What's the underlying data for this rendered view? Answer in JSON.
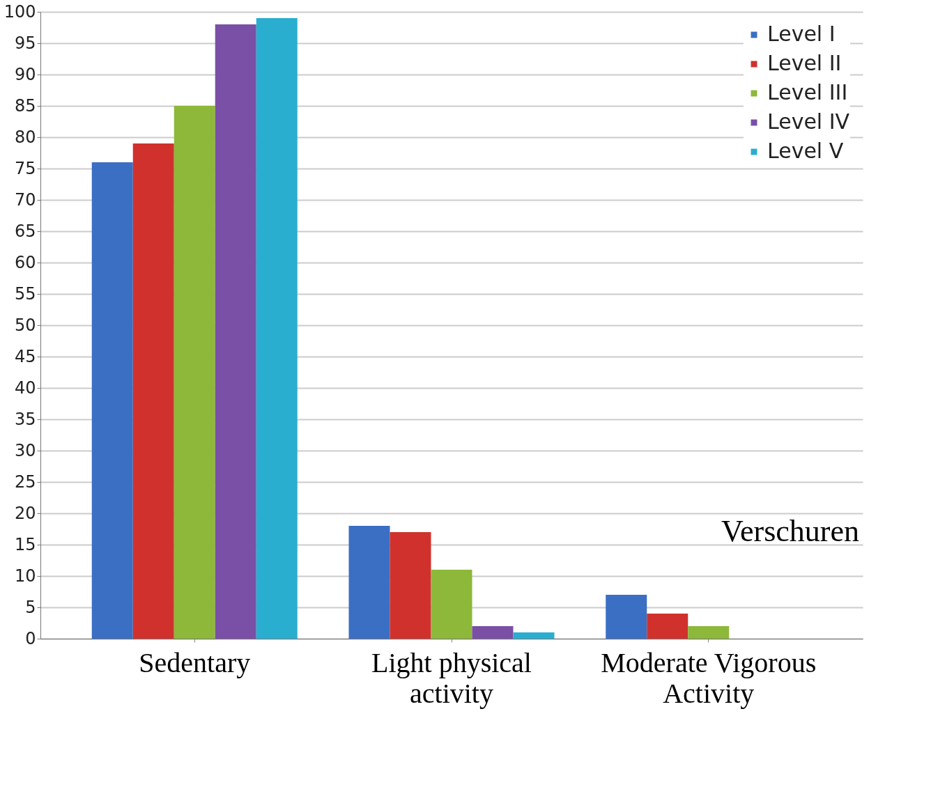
{
  "chart_data": {
    "type": "bar",
    "categories": [
      "Sedentary",
      "Light physical activity",
      "Moderate Vigorous Activity"
    ],
    "series": [
      {
        "name": "Level I",
        "color": "#3a6fc4",
        "values": [
          76,
          18,
          7
        ]
      },
      {
        "name": "Level II",
        "color": "#d0312d",
        "values": [
          79,
          17,
          4
        ]
      },
      {
        "name": "Level III",
        "color": "#8db83a",
        "values": [
          85,
          11,
          2
        ]
      },
      {
        "name": "Level IV",
        "color": "#7a4fa6",
        "values": [
          98,
          2,
          0
        ]
      },
      {
        "name": "Level V",
        "color": "#2aaed0",
        "values": [
          99,
          1,
          0
        ]
      }
    ],
    "ylim": [
      0,
      100
    ],
    "yticks": [
      0,
      5,
      10,
      15,
      20,
      25,
      30,
      35,
      40,
      45,
      50,
      55,
      60,
      65,
      70,
      75,
      80,
      85,
      90,
      95,
      100
    ],
    "grid": "y",
    "legend": "top right",
    "annotations": [
      "Verschuren"
    ]
  }
}
